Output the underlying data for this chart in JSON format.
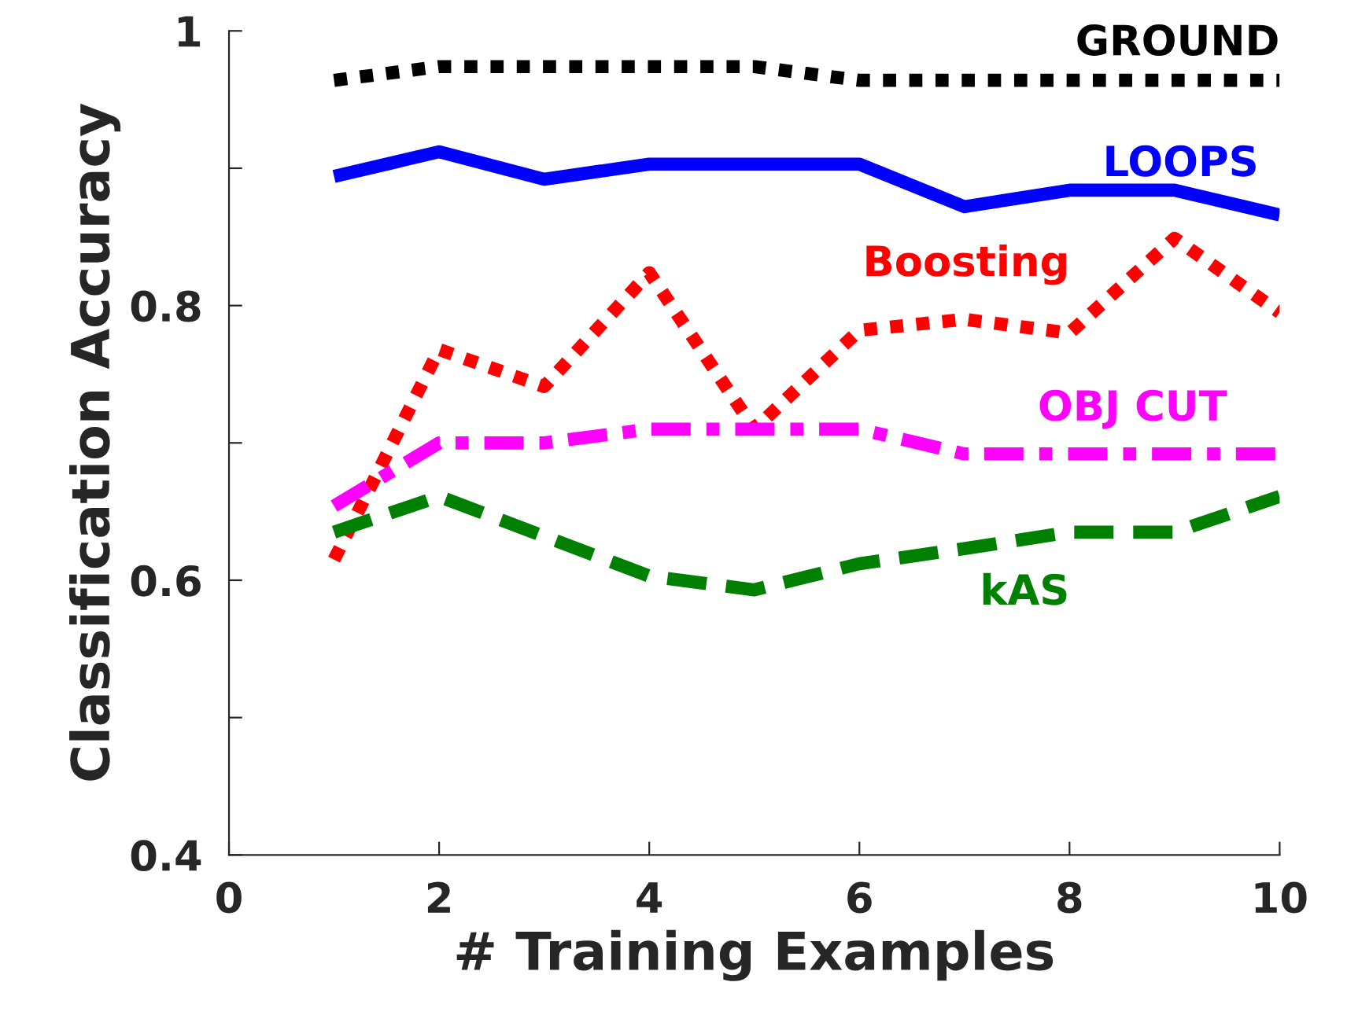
{
  "chart_data": {
    "type": "line",
    "xlabel": "# Training Examples",
    "ylabel": "Classification Accuracy",
    "x": [
      1,
      2,
      3,
      4,
      5,
      6,
      7,
      8,
      9,
      10
    ],
    "xlim": [
      0,
      10
    ],
    "xticks": [
      0,
      2,
      4,
      6,
      8,
      10
    ],
    "ylim": [
      0.4,
      1
    ],
    "yticks": [
      0.4,
      {
        "value": 0.5,
        "label": null
      },
      0.6,
      {
        "value": 0.7,
        "label": null
      },
      0.8,
      {
        "value": 0.9,
        "label": null
      },
      1
    ],
    "grid": false,
    "legend": false,
    "marker": "none",
    "series": [
      {
        "name": "GROUND",
        "color": "#000000",
        "line_style": "dotted",
        "values": [
          0.964,
          0.974,
          0.974,
          0.974,
          0.974,
          0.964,
          0.964,
          0.964,
          0.964,
          0.964
        ]
      },
      {
        "name": "LOOPS",
        "color": "#0000ff",
        "line_style": "solid",
        "values": [
          0.894,
          0.912,
          0.892,
          0.903,
          0.903,
          0.903,
          0.872,
          0.884,
          0.884,
          0.866
        ]
      },
      {
        "name": "Boosting",
        "color": "#ff0000",
        "line_style": "dotted",
        "values": [
          0.615,
          0.768,
          0.741,
          0.824,
          0.71,
          0.782,
          0.79,
          0.78,
          0.849,
          0.795
        ]
      },
      {
        "name": "OBJ CUT",
        "color": "#ff00ff",
        "line_style": "dashdot",
        "values": [
          0.654,
          0.7,
          0.7,
          0.71,
          0.71,
          0.71,
          0.692,
          0.692,
          0.692,
          0.692
        ]
      },
      {
        "name": "kAS",
        "color": "#008000",
        "line_style": "dashed",
        "values": [
          0.635,
          0.661,
          0.632,
          0.603,
          0.593,
          0.612,
          0.623,
          0.635,
          0.635,
          0.661
        ]
      }
    ]
  }
}
